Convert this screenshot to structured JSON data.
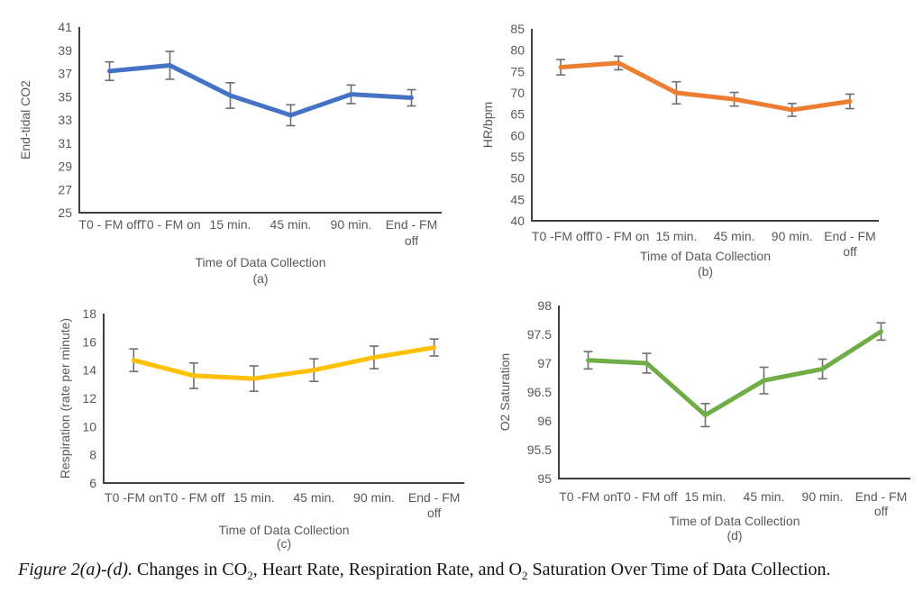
{
  "page": {
    "background": "#ffffff",
    "text_color": "#595959",
    "axis_color": "#3f3f3f",
    "error_bar_color": "#6e6e6e"
  },
  "caption": {
    "figure_label": "Figure 2(a)-(d).",
    "text_part1": " Changes in CO",
    "sub1": "2",
    "text_part2": ", Heart Rate, Respiration Rate, and O",
    "sub2": "2",
    "text_part3": " Saturation Over Time of Data Collection."
  },
  "chart_data": [
    {
      "id": "a",
      "type": "line",
      "panel_label": "(a)",
      "title": "",
      "xlabel": "Time of Data Collection",
      "ylabel": "End-tidal CO2",
      "categories": [
        "T0 - FM off",
        "T0 - FM on",
        "15 min.",
        "45 min.",
        "90 min.",
        "End - FM\noff"
      ],
      "values": [
        37.2,
        37.7,
        35.1,
        33.4,
        35.2,
        34.9
      ],
      "errors": [
        0.8,
        1.2,
        1.1,
        0.9,
        0.8,
        0.7
      ],
      "ylim": [
        25,
        41
      ],
      "yticks": [
        41,
        39,
        37,
        35,
        33,
        31,
        29,
        27,
        25
      ],
      "color": "#4472C4",
      "grid": false,
      "legend": false
    },
    {
      "id": "b",
      "type": "line",
      "panel_label": "(b)",
      "title": "",
      "xlabel": "Time of Data Collection",
      "ylabel": "HR/bpm",
      "categories": [
        "T0 -FM off",
        "T0 - FM on",
        "15 min.",
        "45 min.",
        "90 min.",
        "End - FM\noff"
      ],
      "values": [
        76,
        77,
        70,
        68.5,
        66,
        68
      ],
      "errors": [
        1.8,
        1.6,
        2.6,
        1.6,
        1.5,
        1.7
      ],
      "ylim": [
        40,
        85
      ],
      "yticks": [
        85,
        80,
        75,
        70,
        65,
        60,
        55,
        50,
        45,
        40
      ],
      "color": "#ED7D31",
      "grid": false,
      "legend": false
    },
    {
      "id": "c",
      "type": "line",
      "panel_label": "(c)",
      "title": "",
      "xlabel": "Time of Data Collection",
      "ylabel": "Respiration (rate per minute)",
      "categories": [
        "T0 -FM on",
        "T0 - FM off",
        "15 min.",
        "45 min.",
        "90 min.",
        "End - FM\noff"
      ],
      "values": [
        14.7,
        13.6,
        13.4,
        14.0,
        14.9,
        15.6
      ],
      "errors": [
        0.8,
        0.9,
        0.9,
        0.8,
        0.8,
        0.6
      ],
      "ylim": [
        6,
        18
      ],
      "yticks": [
        18,
        16,
        14,
        12,
        10,
        8,
        6
      ],
      "color": "#FFC000",
      "grid": false,
      "legend": false
    },
    {
      "id": "d",
      "type": "line",
      "panel_label": "(d)",
      "title": "",
      "xlabel": "Time of Data Collection",
      "ylabel": "O2 Saturation",
      "categories": [
        "T0 -FM on",
        "T0 - FM off",
        "15 min.",
        "45 min.",
        "90 min.",
        "End - FM\noff"
      ],
      "values": [
        97.05,
        97.0,
        96.1,
        96.7,
        96.9,
        97.55
      ],
      "errors": [
        0.15,
        0.17,
        0.2,
        0.23,
        0.17,
        0.15
      ],
      "ylim": [
        95,
        98
      ],
      "yticks": [
        98,
        97.5,
        97,
        96.5,
        96,
        95.5,
        95
      ],
      "color": "#70AD47",
      "grid": false,
      "legend": false
    }
  ]
}
